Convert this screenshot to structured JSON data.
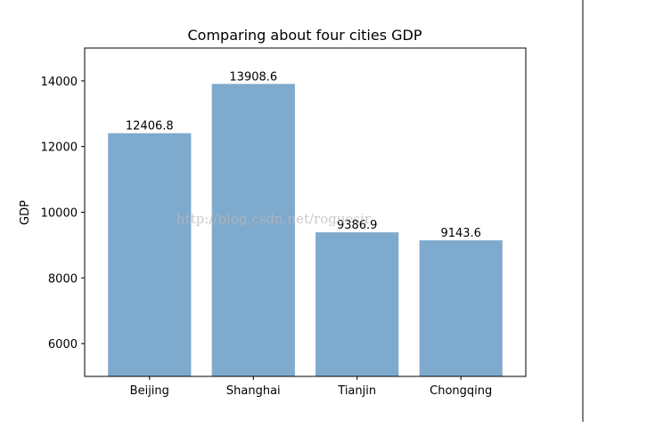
{
  "chart_data": {
    "type": "bar",
    "title": "Comparing about four cities GDP",
    "xlabel": "",
    "ylabel": "GDP",
    "categories": [
      "Beijing",
      "Shanghai",
      "Tianjin",
      "Chongqing"
    ],
    "values": [
      12406.8,
      13908.6,
      9386.9,
      9143.6
    ],
    "value_labels": [
      "12406.8",
      "13908.6",
      "9386.9",
      "9143.6"
    ],
    "ylim": [
      5000,
      15000
    ],
    "yticks": [
      6000,
      8000,
      10000,
      12000,
      14000
    ],
    "ytick_labels": [
      "6000",
      "8000",
      "10000",
      "12000",
      "14000"
    ],
    "bar_color": "#7eaacd",
    "grid": false,
    "legend": "none"
  },
  "watermark": "http://blog.csdn.net/roguesir"
}
